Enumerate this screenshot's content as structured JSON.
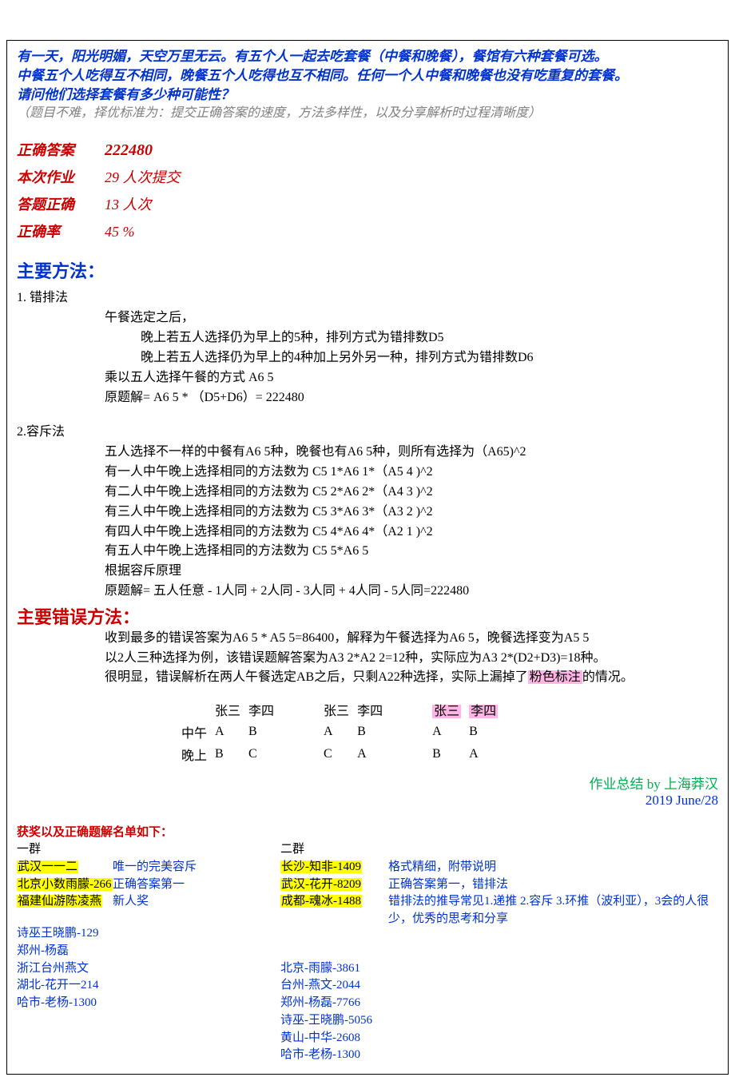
{
  "problem": {
    "line1": "有一天，阳光明媚，天空万里无云。有五个人一起去吃套餐（中餐和晚餐），餐馆有六种套餐可选。",
    "line2": "中餐五个人吃得互不相同，晚餐五个人吃得也互不相同。任何一个人中餐和晚餐也没有吃重复的套餐。",
    "line3": "请问他们选择套餐有多少种可能性？",
    "note": "（题目不难，择优标准为：提交正确答案的速度，方法多样性，以及分享解析时过程清晰度）"
  },
  "stats": {
    "correctAnswerLabel": "正确答案",
    "correctAnswerValue": "222480",
    "submissionsLabel": "本次作业",
    "submissionsValue": "29 人次提交",
    "correctCountLabel": "答题正确",
    "correctCountValue": "13 人次",
    "correctRateLabel": "正确率",
    "correctRateValue": "45 %"
  },
  "methods": {
    "header": "主要方法：",
    "m1": {
      "title": "1. 错排法",
      "line1": "午餐选定之后，",
      "line2": "晚上若五人选择仍为早上的5种，排列方式为错排数D5",
      "line3": "晚上若五人选择仍为早上的4种加上另外另一种，排列方式为错排数D6",
      "line4": "乘以五人选择午餐的方式 A6 5",
      "line5": "原题解= A6 5 * （D5+D6）= 222480"
    },
    "m2": {
      "title": "2.容斥法",
      "line1": "五人选择不一样的中餐有A6 5种，晚餐也有A6 5种，则所有选择为（A65)^2",
      "line2": "有一人中午晚上选择相同的方法数为 C5 1*A6 1*（A5 4 )^2",
      "line3": "有二人中午晚上选择相同的方法数为 C5 2*A6 2*（A4 3 )^2",
      "line4": "有三人中午晚上选择相同的方法数为  C5 3*A6 3*（A3 2 )^2",
      "line5": "有四人中午晚上选择相同的方法数为  C5 4*A6 4*（A2 1 )^2",
      "line6": "有五人中午晚上选择相同的方法数为  C5 5*A6 5",
      "line7": "根据容斥原理",
      "line8": "原题解= 五人任意 - 1人同 + 2人同 - 3人同 + 4人同 - 5人同=222480"
    }
  },
  "errors": {
    "header": "主要错误方法：",
    "line1": "收到最多的错误答案为A6 5 * A5 5=86400，解释为午餐选择为A6 5，晚餐选择变为A5 5",
    "line2": "以2人三种选择为例，该错误题解答案为A3 2*A2 2=12种，实际应为A3 2*(D2+D3)=18种。",
    "line3a": "很明显，错误解析在两人午餐选定AB之后，只剩A22种选择，实际上漏掉了",
    "line3b": "粉色标注",
    "line3c": "的情况。"
  },
  "example": {
    "h1": "张三",
    "h2": "李四",
    "rowLabels": {
      "lunch": "中午",
      "dinner": "晚上"
    },
    "set1": {
      "lunch": [
        "A",
        "B"
      ],
      "dinner": [
        "B",
        "C"
      ]
    },
    "set2": {
      "lunch": [
        "A",
        "B"
      ],
      "dinner": [
        "C",
        "A"
      ]
    },
    "set3": {
      "lunch": [
        "A",
        "B"
      ],
      "dinner": [
        "B",
        "A"
      ]
    }
  },
  "byline": {
    "author": "作业总结 by 上海莽汉",
    "date": "2019 June/28"
  },
  "awards": {
    "header": "获奖以及正确题解名单如下：",
    "group1_header": "一群",
    "group2_header": "二群",
    "group1_top": [
      {
        "name": "武汉一一二",
        "remark": "唯一的完美容斥"
      },
      {
        "name": "北京小数雨朦-266",
        "remark": "正确答案第一"
      },
      {
        "name": "福建仙游陈凌燕",
        "remark": "新人奖"
      }
    ],
    "group1_rest": [
      "诗巫王晓鹏-129",
      "郑州-杨磊",
      "浙江台州燕文",
      "湖北-花开一214",
      "哈市-老杨-1300"
    ],
    "group2_top": [
      {
        "name": "长沙-知非-1409",
        "remark": "格式精细，附带说明"
      },
      {
        "name": "武汉-花开-8209",
        "remark": "正确答案第一，错排法"
      },
      {
        "name": "成都-魂冰-1488",
        "remark": "错排法的推导常见1.递推 2.容斥 3.环推（波利亚），3会的人很少，优秀的思考和分享"
      }
    ],
    "group2_rest": [
      "北京-雨朦-3861",
      "台州-燕文-2044",
      "郑州-杨磊-7766",
      "诗巫-王晓鹏-5056",
      "黄山-中华-2608",
      "哈市-老杨-1300"
    ]
  }
}
